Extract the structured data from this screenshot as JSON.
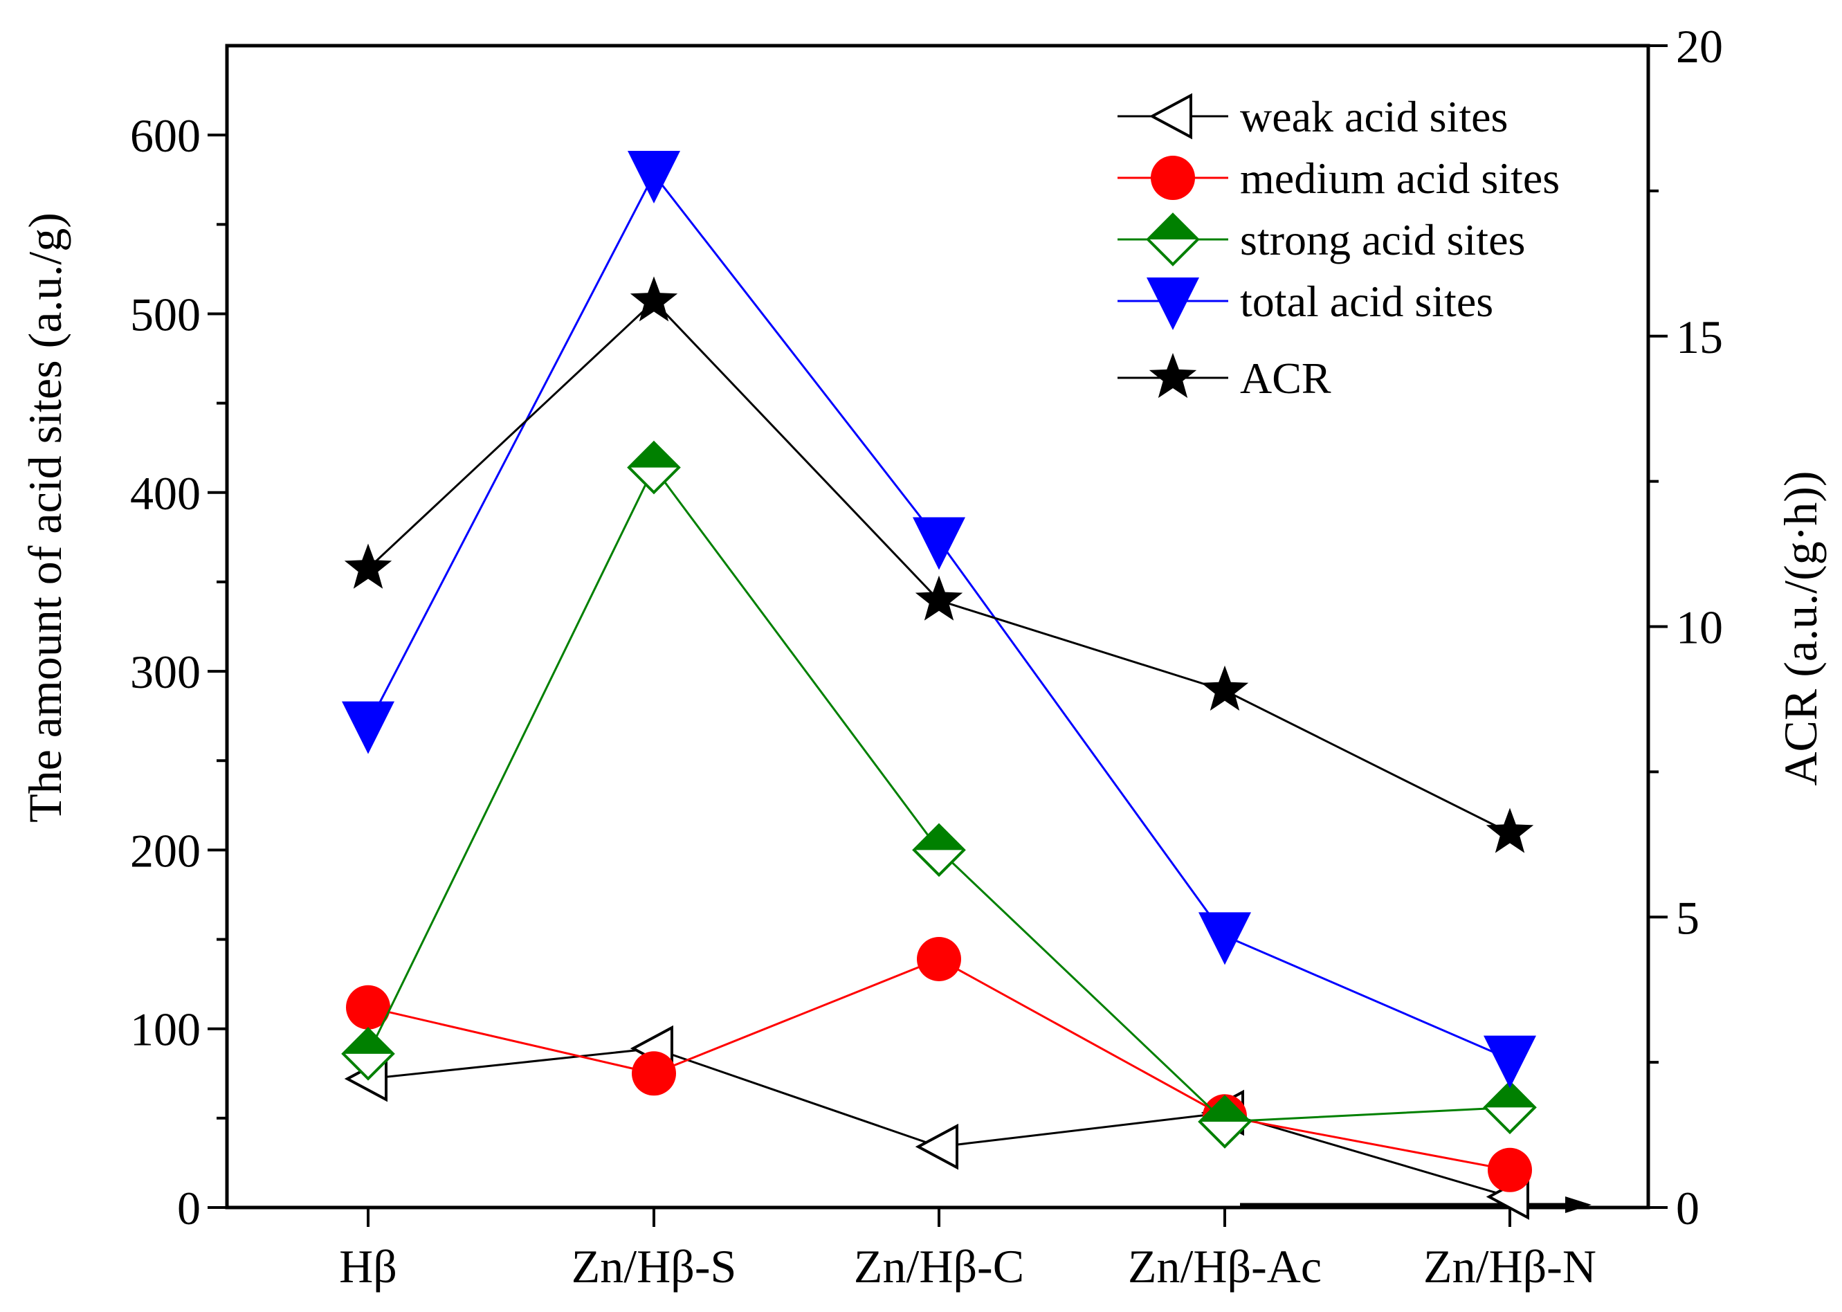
{
  "chart_data": {
    "type": "line",
    "categories": [
      "Hβ",
      "Zn/Hβ-S",
      "Zn/Hβ-C",
      "Zn/Hβ-Ac",
      "Zn/Hβ-N"
    ],
    "ylabel": "The amount of acid sites (a.u./g)",
    "y2label": "ACR (a.u./(g·h))",
    "ylim": [
      0,
      650
    ],
    "y2lim": [
      0,
      20
    ],
    "yticks": [
      0,
      100,
      200,
      300,
      400,
      500,
      600
    ],
    "yminor": [
      50,
      150,
      250,
      350,
      450,
      550
    ],
    "y2ticks": [
      0,
      5,
      10,
      15,
      20
    ],
    "y2minor": [
      2.5,
      7.5,
      12.5,
      17.5
    ],
    "legend_position": "top-right",
    "series": [
      {
        "name": "weak acid sites",
        "axis": "left",
        "color": "#000000",
        "marker": "triangle-left-open",
        "values": [
          72,
          89,
          34,
          53,
          6
        ]
      },
      {
        "name": "medium acid sites",
        "axis": "left",
        "color": "#ff0000",
        "marker": "circle",
        "values": [
          112,
          75,
          139,
          51,
          21
        ]
      },
      {
        "name": "strong acid sites",
        "axis": "left",
        "color": "#008000",
        "marker": "diamond-half",
        "values": [
          86,
          414,
          200,
          48,
          56
        ]
      },
      {
        "name": "total acid sites",
        "axis": "left",
        "color": "#0000ff",
        "marker": "triangle-down",
        "values": [
          270,
          578,
          373,
          152,
          83
        ]
      },
      {
        "name": "ACR",
        "axis": "right",
        "color": "#000000",
        "marker": "star",
        "values": [
          11.0,
          15.6,
          10.45,
          8.9,
          6.45
        ]
      }
    ]
  }
}
